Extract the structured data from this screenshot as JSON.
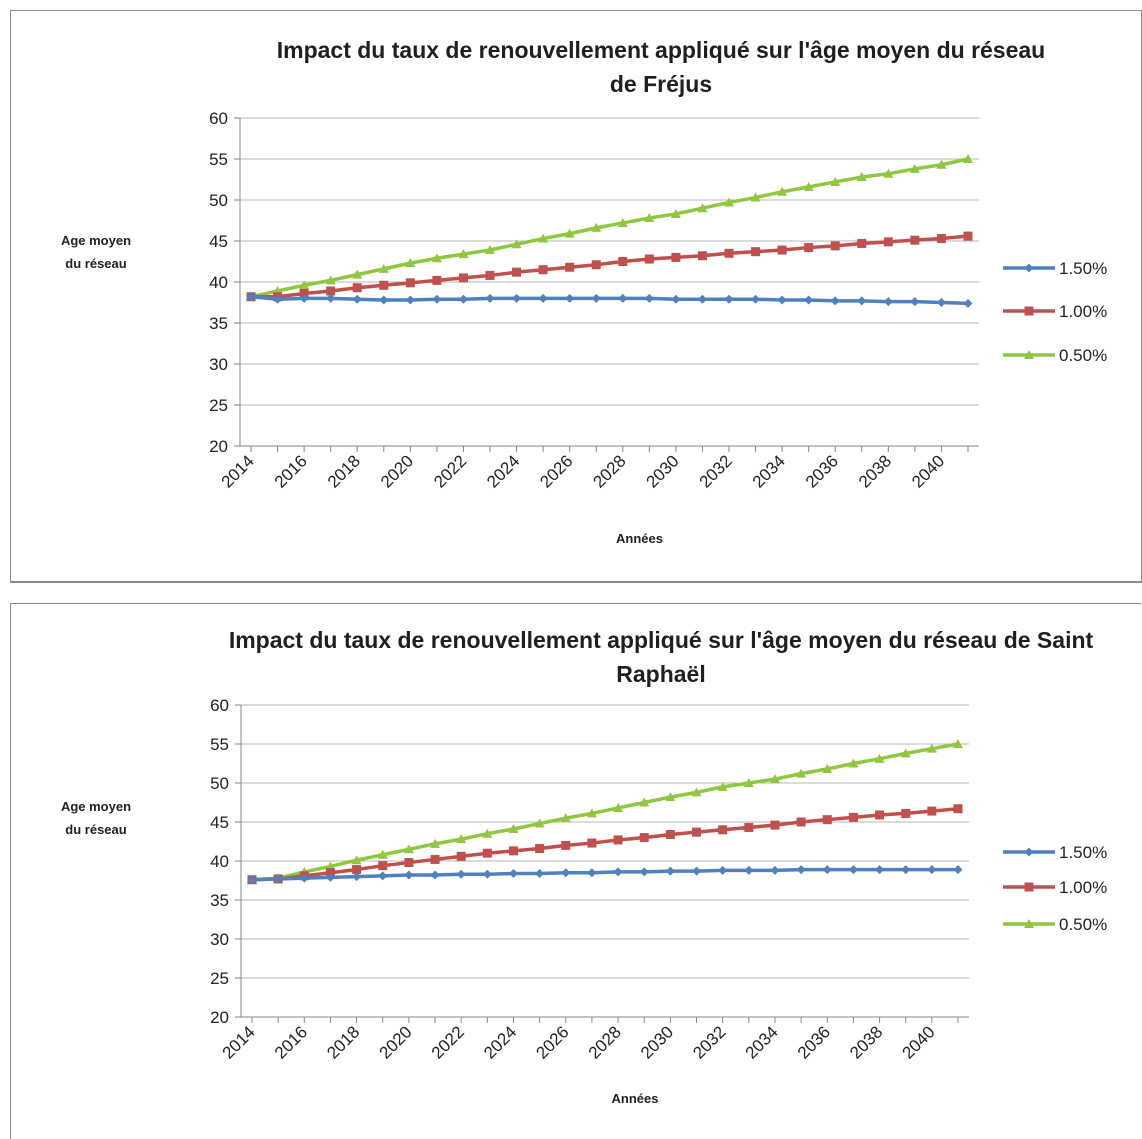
{
  "chart_data": [
    {
      "type": "line",
      "title_lines": [
        "Impact du taux de renouvellement appliqué sur  l'âge moyen du réseau",
        "de Fréjus"
      ],
      "ylabel_lines": [
        "Age moyen",
        "du réseau"
      ],
      "xlabel": "Années",
      "ylim": [
        20,
        60
      ],
      "yticks": [
        "20",
        "25",
        "30",
        "35",
        "40",
        "45",
        "50",
        "55",
        "60"
      ],
      "xlim": [
        2014,
        2041
      ],
      "xticks": [
        "2014",
        "2016",
        "2018",
        "2020",
        "2022",
        "2024",
        "2026",
        "2028",
        "2030",
        "2032",
        "2034",
        "2036",
        "2038",
        "2040"
      ],
      "grid": true,
      "legend_position": "right",
      "x": [
        2014,
        2015,
        2016,
        2017,
        2018,
        2019,
        2020,
        2021,
        2022,
        2023,
        2024,
        2025,
        2026,
        2027,
        2028,
        2029,
        2030,
        2031,
        2032,
        2033,
        2034,
        2035,
        2036,
        2037,
        2038,
        2039,
        2040,
        2041
      ],
      "series": [
        {
          "name": "1.50%",
          "color": "#4f81bd",
          "marker": "diamond",
          "values": [
            38.2,
            37.9,
            38.0,
            38.0,
            37.9,
            37.8,
            37.8,
            37.9,
            37.9,
            38.0,
            38.0,
            38.0,
            38.0,
            38.0,
            38.0,
            38.0,
            37.9,
            37.9,
            37.9,
            37.9,
            37.8,
            37.8,
            37.7,
            37.7,
            37.6,
            37.6,
            37.5,
            37.4
          ]
        },
        {
          "name": "1.00%",
          "color": "#c0504d",
          "marker": "square",
          "values": [
            38.2,
            38.2,
            38.6,
            38.9,
            39.3,
            39.6,
            39.9,
            40.2,
            40.5,
            40.8,
            41.2,
            41.5,
            41.8,
            42.1,
            42.5,
            42.8,
            43.0,
            43.2,
            43.5,
            43.7,
            43.9,
            44.2,
            44.4,
            44.7,
            44.9,
            45.1,
            45.3,
            45.6
          ]
        },
        {
          "name": "0.50%",
          "color": "#8fc73e",
          "marker": "triangle",
          "values": [
            38.2,
            38.9,
            39.6,
            40.2,
            40.9,
            41.6,
            42.3,
            42.9,
            43.4,
            43.9,
            44.6,
            45.3,
            45.9,
            46.6,
            47.2,
            47.8,
            48.3,
            49.0,
            49.7,
            50.3,
            51.0,
            51.6,
            52.2,
            52.8,
            53.2,
            53.8,
            54.3,
            55.0
          ]
        }
      ]
    },
    {
      "type": "line",
      "title_lines": [
        "Impact du taux de renouvellement appliqué sur  l'âge moyen du réseau de Saint",
        "Raphaël"
      ],
      "ylabel_lines": [
        "Age moyen",
        "du réseau"
      ],
      "xlabel": "Années",
      "ylim": [
        20,
        60
      ],
      "yticks": [
        "20",
        "25",
        "30",
        "35",
        "40",
        "45",
        "50",
        "55",
        "60"
      ],
      "xlim": [
        2014,
        2041
      ],
      "xticks": [
        "2014",
        "2016",
        "2018",
        "2020",
        "2022",
        "2024",
        "2026",
        "2028",
        "2030",
        "2032",
        "2034",
        "2036",
        "2038",
        "2040"
      ],
      "grid": true,
      "legend_position": "right",
      "x": [
        2014,
        2015,
        2016,
        2017,
        2018,
        2019,
        2020,
        2021,
        2022,
        2023,
        2024,
        2025,
        2026,
        2027,
        2028,
        2029,
        2030,
        2031,
        2032,
        2033,
        2034,
        2035,
        2036,
        2037,
        2038,
        2039,
        2040,
        2041
      ],
      "series": [
        {
          "name": "1.50%",
          "color": "#4f81bd",
          "marker": "diamond",
          "values": [
            37.6,
            37.7,
            37.8,
            37.9,
            38.0,
            38.1,
            38.2,
            38.2,
            38.3,
            38.3,
            38.4,
            38.4,
            38.5,
            38.5,
            38.6,
            38.6,
            38.7,
            38.7,
            38.8,
            38.8,
            38.8,
            38.9,
            38.9,
            38.9,
            38.9,
            38.9,
            38.9,
            38.9
          ]
        },
        {
          "name": "1.00%",
          "color": "#c0504d",
          "marker": "square",
          "values": [
            37.6,
            37.7,
            38.1,
            38.5,
            38.9,
            39.4,
            39.8,
            40.2,
            40.6,
            41.0,
            41.3,
            41.6,
            42.0,
            42.3,
            42.7,
            43.0,
            43.4,
            43.7,
            44.0,
            44.3,
            44.6,
            45.0,
            45.3,
            45.6,
            45.9,
            46.1,
            46.4,
            46.7
          ]
        },
        {
          "name": "0.50%",
          "color": "#8fc73e",
          "marker": "triangle",
          "values": [
            37.6,
            37.8,
            38.6,
            39.3,
            40.1,
            40.8,
            41.5,
            42.2,
            42.8,
            43.5,
            44.1,
            44.8,
            45.5,
            46.1,
            46.8,
            47.5,
            48.2,
            48.8,
            49.5,
            50.0,
            50.5,
            51.2,
            51.8,
            52.5,
            53.1,
            53.8,
            54.4,
            55.0
          ]
        }
      ]
    }
  ]
}
